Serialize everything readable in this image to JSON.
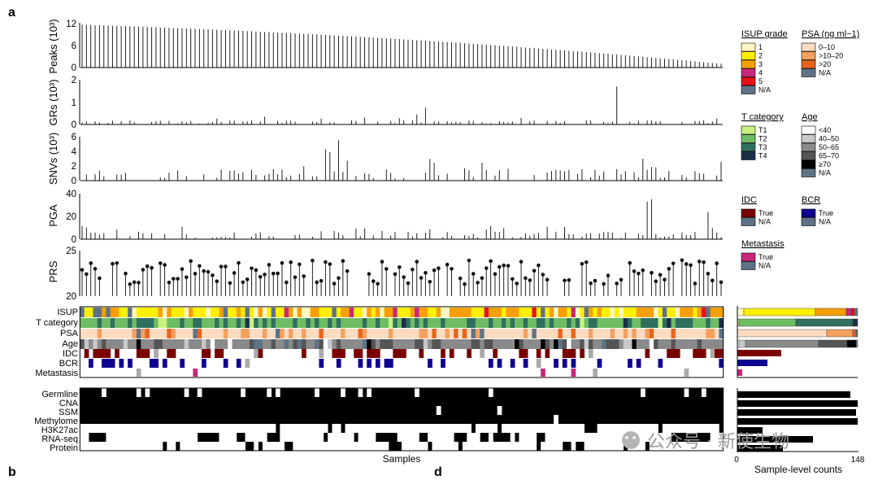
{
  "panel_labels": {
    "a": "a",
    "b": "b",
    "d": "d"
  },
  "footer": {
    "samples_label": "Samples",
    "counts_label": "Sample-level counts",
    "count_ticks": [
      "0",
      "148"
    ]
  },
  "watermark": {
    "text": "公众号 · 新使生物"
  },
  "colors": {
    "isup": [
      "#fff7c2",
      "#ffef00",
      "#f5a000",
      "#c8287a",
      "#e8101a",
      "#5f7385"
    ],
    "psa": [
      "#fbdcc0",
      "#f5a05f",
      "#e8651e",
      "#5f7385"
    ],
    "tcat": [
      "#c8f080",
      "#6dbd62",
      "#2f6f5e",
      "#1b2e4a"
    ],
    "age": [
      "#ffffff",
      "#c8c8c8",
      "#8a8a8a",
      "#555555",
      "#000000",
      "#5f7385"
    ],
    "idc": [
      "#7a0000",
      "#5f7385"
    ],
    "bcr": [
      "#100090",
      "#5f7385"
    ],
    "met": [
      "#c8287a",
      "#5f7385"
    ]
  },
  "legend": {
    "isup": {
      "title": "ISUP grade",
      "items": [
        "1",
        "2",
        "3",
        "4",
        "5",
        "N/A"
      ]
    },
    "psa": {
      "title": "PSA (ng ml−1)",
      "items": [
        "0–10",
        ">10–20",
        ">20",
        "N/A"
      ]
    },
    "tcat": {
      "title": "T category",
      "items": [
        "T1",
        "T2",
        "T3",
        "T4"
      ]
    },
    "age": {
      "title": "Age",
      "items": [
        "<40",
        "40–50",
        "50–65",
        "65–70",
        "≥70",
        "N/A"
      ]
    },
    "idc": {
      "title": "IDC",
      "items": [
        "True",
        "N/A"
      ]
    },
    "bcr": {
      "title": "BCR",
      "items": [
        "True",
        "N/A"
      ]
    },
    "met": {
      "title": "Metastasis",
      "items": [
        "True",
        "N/A"
      ]
    }
  },
  "chart_data": [
    {
      "type": "bar",
      "ylabel": "Peaks (10³)",
      "yticks": [
        "12",
        "6",
        "0"
      ],
      "ylim": [
        0,
        12
      ],
      "x": "samples ranked by peak count",
      "values_summary": "monotonically decreasing from ~11.5 to ~1.0 across 148 samples",
      "start": 11.5,
      "end": 1.0
    },
    {
      "type": "bar",
      "ylabel": "GRs (10³)",
      "yticks": [
        "2",
        "1",
        "0"
      ],
      "ylim": [
        0,
        2
      ],
      "values_note": "mostly below 0.3; maxima ~1.7 and ~0.75",
      "peaks": [
        {
          "sample": 123,
          "value": 1.7
        },
        {
          "sample": 79,
          "value": 0.75
        },
        {
          "sample": 77,
          "value": 0.45
        }
      ]
    },
    {
      "type": "bar",
      "ylabel": "SNVs (10³)",
      "yticks": [
        "6",
        "4",
        "2",
        "0"
      ],
      "ylim": [
        0,
        6
      ],
      "peaks": [
        {
          "sample": 59,
          "value": 5.5
        },
        {
          "sample": 56,
          "value": 4.3
        },
        {
          "sample": 57,
          "value": 3.9
        }
      ]
    },
    {
      "type": "bar",
      "ylabel": "PGA",
      "yticks": [
        "40",
        "20",
        "0"
      ],
      "ylim": [
        0,
        40
      ],
      "peaks": [
        {
          "sample": 131,
          "value": 35
        },
        {
          "sample": 130,
          "value": 33
        },
        {
          "sample": 144,
          "value": 24
        }
      ]
    },
    {
      "type": "scatter",
      "subtype": "lollipop",
      "ylabel": "PRS",
      "yticks": [
        "25",
        "20"
      ],
      "ylim": [
        20,
        25
      ],
      "values_range": [
        21.3,
        24.0
      ]
    },
    {
      "type": "heatmap",
      "rows": [
        "ISUP",
        "T category",
        "PSA",
        "Age",
        "IDC",
        "BCR",
        "Metastasis"
      ]
    },
    {
      "type": "heatmap",
      "rows": [
        "Germline",
        "CNA",
        "SSM",
        "Methylome",
        "H3K27ac",
        "RNA-seq",
        "Protein"
      ]
    },
    {
      "type": "bar",
      "orientation": "horizontal",
      "title": "Sample-level counts",
      "xlim": [
        0,
        148
      ],
      "categories": [
        "Germline",
        "CNA",
        "SSM",
        "Methylome",
        "H3K27ac",
        "RNA-seq",
        "Protein"
      ],
      "values": [
        139,
        148,
        146,
        148,
        31,
        93,
        56
      ]
    },
    {
      "type": "bar",
      "orientation": "horizontal",
      "subtype": "stacked",
      "categories": [
        "ISUP",
        "T category",
        "PSA",
        "Age",
        "IDC",
        "BCR",
        "Metastasis"
      ],
      "values": [
        148,
        148,
        148,
        148,
        54,
        37,
        6
      ]
    }
  ]
}
